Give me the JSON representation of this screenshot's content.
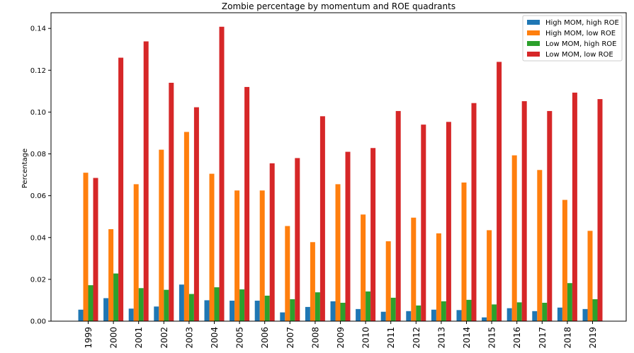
{
  "chart_data": {
    "type": "bar",
    "title": "Zombie percentage by momentum and ROE quadrants",
    "xlabel": "",
    "ylabel": "Percentage",
    "ylim": [
      0,
      0.1475
    ],
    "yticks": [
      "0.00",
      "0.02",
      "0.04",
      "0.06",
      "0.08",
      "0.10",
      "0.12",
      "0.14"
    ],
    "ytick_values": [
      0,
      0.02,
      0.04,
      0.06,
      0.08,
      0.1,
      0.12,
      0.14
    ],
    "legend_position": "top-right",
    "categories": [
      "1999",
      "2000",
      "2001",
      "2002",
      "2003",
      "2004",
      "2005",
      "2006",
      "2007",
      "2008",
      "2009",
      "2010",
      "2011",
      "2012",
      "2013",
      "2014",
      "2015",
      "2016",
      "2017",
      "2018",
      "2019"
    ],
    "series": [
      {
        "name": "High MOM, high ROE",
        "color": "#1f77b4",
        "values": [
          0.0055,
          0.011,
          0.006,
          0.007,
          0.0175,
          0.01,
          0.0098,
          0.0098,
          0.0042,
          0.0068,
          0.0095,
          0.0058,
          0.0045,
          0.0048,
          0.0055,
          0.0053,
          0.0018,
          0.0062,
          0.0048,
          0.0065,
          0.0058
        ]
      },
      {
        "name": "High MOM, low ROE",
        "color": "#ff7f0e",
        "values": [
          0.071,
          0.044,
          0.0655,
          0.082,
          0.0905,
          0.0705,
          0.0625,
          0.0625,
          0.0455,
          0.0378,
          0.0655,
          0.051,
          0.0382,
          0.0495,
          0.042,
          0.0663,
          0.0435,
          0.0793,
          0.0723,
          0.058,
          0.0432
        ]
      },
      {
        "name": "Low MOM, high ROE",
        "color": "#2ca02c",
        "values": [
          0.0172,
          0.0228,
          0.0158,
          0.015,
          0.013,
          0.0162,
          0.0152,
          0.0122,
          0.0105,
          0.0138,
          0.0088,
          0.0142,
          0.0112,
          0.0075,
          0.0095,
          0.0102,
          0.008,
          0.009,
          0.0088,
          0.0182,
          0.0105
        ]
      },
      {
        "name": "Low MOM, low ROE",
        "color": "#d62728",
        "values": [
          0.0685,
          0.126,
          0.1338,
          0.114,
          0.1023,
          0.1408,
          0.112,
          0.0755,
          0.078,
          0.098,
          0.081,
          0.0828,
          0.1005,
          0.094,
          0.0953,
          0.1043,
          0.124,
          0.1052,
          0.1005,
          0.1093,
          0.1062
        ]
      }
    ]
  }
}
